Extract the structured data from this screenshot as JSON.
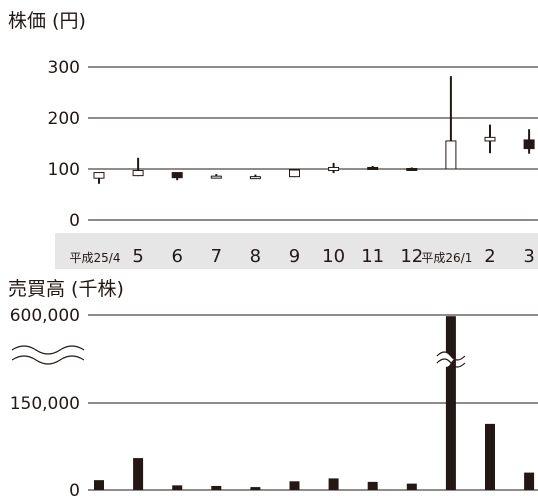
{
  "chart_data": [
    {
      "type": "candlestick",
      "title": "株価 (円)",
      "categories": [
        "平成25/4",
        "5",
        "6",
        "7",
        "8",
        "9",
        "10",
        "11",
        "12",
        "平成26/1",
        "2",
        "3"
      ],
      "ohlc": [
        {
          "open": 82,
          "high": 90,
          "low": 71,
          "close": 93
        },
        {
          "open": 87,
          "high": 122,
          "low": 86,
          "close": 97
        },
        {
          "open": 93,
          "high": 93,
          "low": 78,
          "close": 83
        },
        {
          "open": 83,
          "high": 90,
          "low": 82,
          "close": 86
        },
        {
          "open": 84,
          "high": 89,
          "low": 81,
          "close": 85
        },
        {
          "open": 85,
          "high": 100,
          "low": 84,
          "close": 98
        },
        {
          "open": 97,
          "high": 112,
          "low": 92,
          "close": 103
        },
        {
          "open": 103,
          "high": 106,
          "low": 99,
          "close": 101
        },
        {
          "open": 101,
          "high": 103,
          "low": 98,
          "close": 100
        },
        {
          "open": 100,
          "high": 282,
          "low": 100,
          "close": 155
        },
        {
          "open": 155,
          "high": 187,
          "low": 131,
          "close": 162
        },
        {
          "open": 157,
          "high": 178,
          "low": 130,
          "close": 140
        }
      ],
      "yticks": [
        "300",
        "200",
        "100",
        "0"
      ],
      "ylim": [
        0,
        300
      ]
    },
    {
      "type": "bar",
      "title": "売買高 (千株)",
      "categories": [
        "平成25/4",
        "5",
        "6",
        "7",
        "8",
        "9",
        "10",
        "11",
        "12",
        "平成26/1",
        "2",
        "3"
      ],
      "values": [
        17000,
        55000,
        8000,
        7000,
        5000,
        15000,
        20000,
        14000,
        11000,
        590000,
        114000,
        30000
      ],
      "yticks": [
        "600,000",
        "150,000",
        "0"
      ],
      "axis_break": true
    }
  ],
  "colors": {
    "text": "#231815",
    "line": "#231815",
    "category_band": "#e6e6e6",
    "up_body": "#ffffff",
    "down_body": "#231815"
  }
}
